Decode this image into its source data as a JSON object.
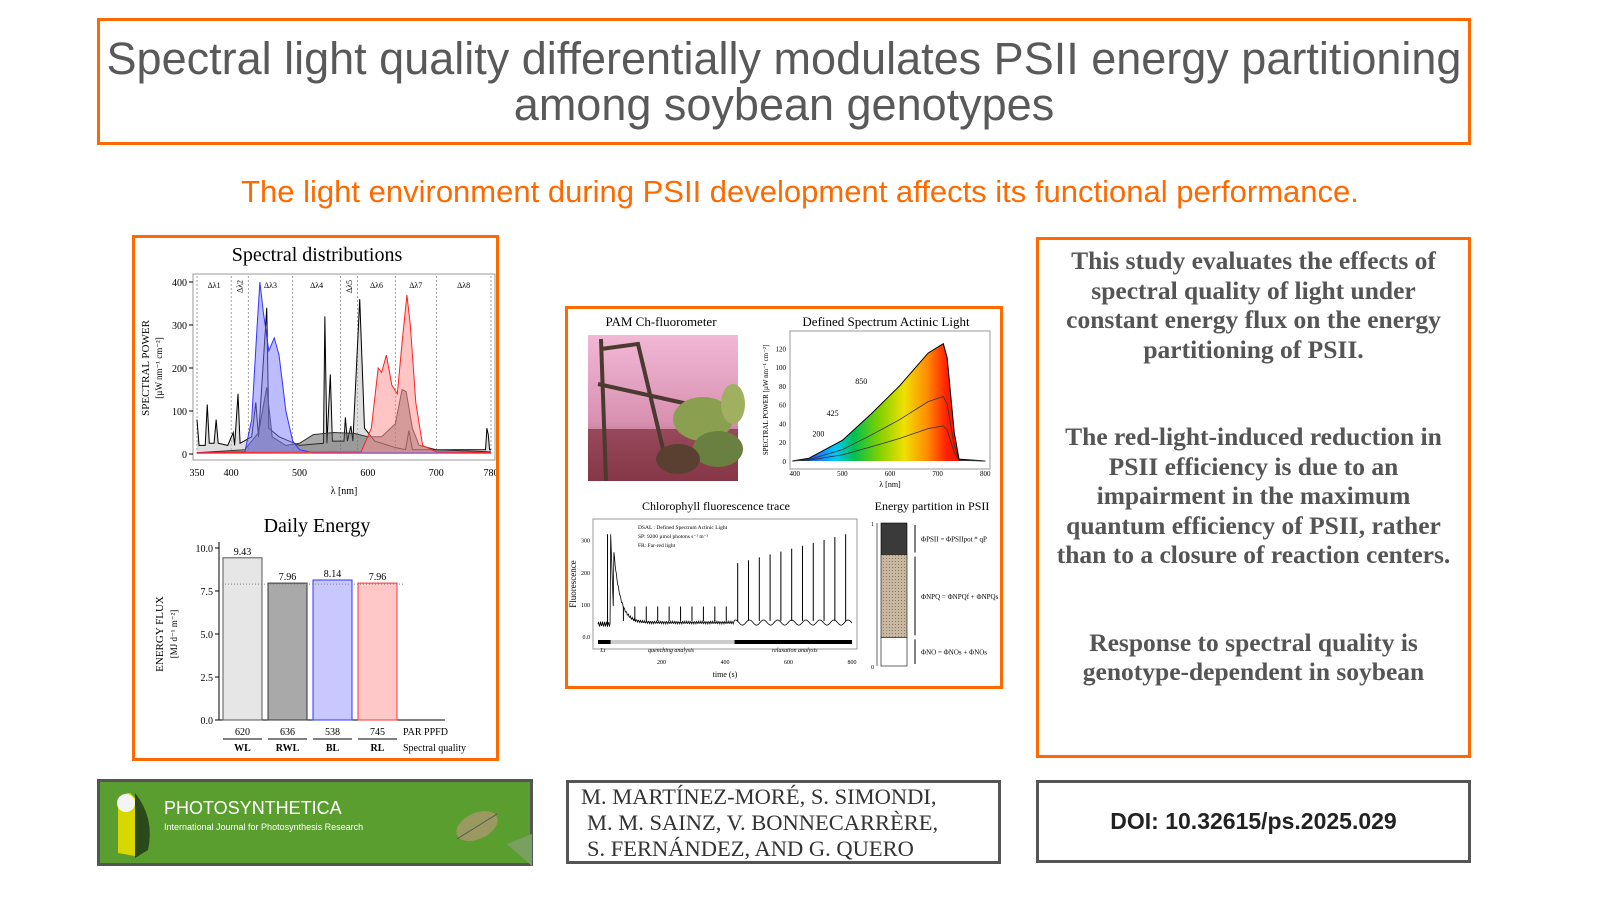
{
  "title": "Spectral light quality differentially modulates PSII energy partitioning among soybean genotypes",
  "subtitle": "The light environment during PSII development affects its functional performance.",
  "left_panel": {
    "spectral_title": "Spectral distributions",
    "energy_title": "Daily Energy"
  },
  "mid_panel": {
    "photo_title": "PAM Ch-fluorometer",
    "spectrum_title": "Defined Spectrum Actinic Light",
    "spectrum_ylabel": "SPECTRAL POWER [µW nm⁻¹ cm⁻²]",
    "spectrum_xlabel": "λ [nm]",
    "spectrum_yticks": [
      "0",
      "20",
      "40",
      "60",
      "80",
      "100",
      "120"
    ],
    "spectrum_xticks": [
      "400",
      "500",
      "600",
      "700",
      "800"
    ],
    "spectrum_curve_labels": [
      "850",
      "425",
      "200"
    ],
    "trace_title": "Chlorophyll fluorescence trace",
    "trace_ylabel": "Fluorescence",
    "trace_xlabel": "time (s)",
    "trace_yticks": [
      "0.0",
      "100",
      "200",
      "300"
    ],
    "trace_xticks": [
      "200",
      "400",
      "600",
      "800"
    ],
    "trace_legend": [
      "DSAL : Defined Spectrum Actinic Light",
      "SP: 9200 µmol photons s⁻¹ m⁻²",
      "FR: Far-red light"
    ],
    "trace_phases": [
      "Lt",
      "quenching analysis",
      "relaxation analysis"
    ],
    "partition_title": "Energy partition in PSII",
    "partition_labels": [
      "ΦPSII = ΦPSIIpot * qP",
      "ΦNPQ = ΦNPQf + ΦNPQs",
      "ΦNO = ΦNOs + ΦNOs"
    ],
    "partition_fractions": [
      0.22,
      0.58,
      0.2
    ],
    "partition_axis": [
      "1",
      "0"
    ]
  },
  "right_panel": {
    "paragraphs": [
      "This study evaluates the effects of spectral quality of light under constant energy flux on the energy partitioning of PSII.",
      "The red-light-induced reduction in PSII efficiency is due to an impairment in the maximum quantum efficiency of PSII, rather than to a closure of reaction centers.",
      "Response to spectral quality is genotype-dependent in soybean"
    ]
  },
  "journal": {
    "name": "PHOTOSYNTHETICA",
    "tagline": "International Journal for Photosynthesis Research"
  },
  "authors": [
    "M. MARTÍNEZ-MORÉ, S. SIMONDI,",
    "M. M. SAINZ, V. BONNECARRÈRE,",
    "S. FERNÁNDEZ, AND G. QUERO"
  ],
  "doi": "DOI: 10.32615/ps.2025.029",
  "chart_data": [
    {
      "type": "area",
      "title": "Spectral distributions",
      "xlabel": "λ [nm]",
      "ylabel": "SPECTRAL POWER",
      "ylabel_units": "[µW nm⁻¹ cm⁻²]",
      "xlim": [
        350,
        780
      ],
      "ylim": [
        0,
        400
      ],
      "xticks": [
        350,
        400,
        500,
        600,
        700,
        780
      ],
      "yticks": [
        0,
        100,
        200,
        300,
        400
      ],
      "band_edges": [
        350,
        400,
        425,
        490,
        560,
        585,
        640,
        700,
        780
      ],
      "band_labels": [
        "Δλ1",
        "Δλ2",
        "Δλ3",
        "Δλ4",
        "Δλ5",
        "Δλ6",
        "Δλ7",
        "Δλ8"
      ],
      "series": [
        {
          "name": "WL",
          "color": "#000000",
          "fill": "#bdbdbd",
          "points": [
            [
              350,
              80
            ],
            [
              353,
              20
            ],
            [
              362,
              20
            ],
            [
              365,
              115
            ],
            [
              368,
              25
            ],
            [
              375,
              25
            ],
            [
              378,
              80
            ],
            [
              381,
              25
            ],
            [
              395,
              20
            ],
            [
              403,
              50
            ],
            [
              405,
              20
            ],
            [
              410,
              140
            ],
            [
              413,
              25
            ],
            [
              430,
              40
            ],
            [
              436,
              120
            ],
            [
              440,
              40
            ],
            [
              452,
              340
            ],
            [
              455,
              60
            ],
            [
              470,
              40
            ],
            [
              500,
              20
            ],
            [
              535,
              25
            ],
            [
              537,
              320
            ],
            [
              540,
              25
            ],
            [
              545,
              185
            ],
            [
              548,
              30
            ],
            [
              565,
              30
            ],
            [
              567,
              85
            ],
            [
              570,
              30
            ],
            [
              575,
              65
            ],
            [
              578,
              30
            ],
            [
              588,
              360
            ],
            [
              595,
              60
            ],
            [
              610,
              30
            ],
            [
              640,
              15
            ],
            [
              655,
              10
            ],
            [
              660,
              55
            ],
            [
              665,
              10
            ],
            [
              700,
              10
            ],
            [
              772,
              10
            ],
            [
              774,
              60
            ],
            [
              776,
              45
            ],
            [
              778,
              10
            ],
            [
              780,
              10
            ]
          ]
        },
        {
          "name": "RWL",
          "color": "#333333",
          "fill": "#555555",
          "points": [
            [
              350,
              3
            ],
            [
              420,
              10
            ],
            [
              440,
              50
            ],
            [
              452,
              155
            ],
            [
              460,
              40
            ],
            [
              480,
              20
            ],
            [
              500,
              25
            ],
            [
              520,
              45
            ],
            [
              550,
              50
            ],
            [
              580,
              48
            ],
            [
              600,
              40
            ],
            [
              620,
              40
            ],
            [
              640,
              70
            ],
            [
              650,
              150
            ],
            [
              656,
              145
            ],
            [
              665,
              60
            ],
            [
              675,
              20
            ],
            [
              700,
              10
            ],
            [
              780,
              5
            ]
          ]
        },
        {
          "name": "BL",
          "color": "#3333ff",
          "fill": "#7a7aff",
          "points": [
            [
              350,
              3
            ],
            [
              420,
              5
            ],
            [
              430,
              80
            ],
            [
              438,
              300
            ],
            [
              442,
              400
            ],
            [
              447,
              330
            ],
            [
              455,
              240
            ],
            [
              463,
              270
            ],
            [
              470,
              230
            ],
            [
              480,
              100
            ],
            [
              490,
              30
            ],
            [
              500,
              10
            ],
            [
              520,
              3
            ],
            [
              780,
              3
            ]
          ]
        },
        {
          "name": "RL",
          "color": "#ff2222",
          "fill": "#ff8a8a",
          "points": [
            [
              350,
              3
            ],
            [
              590,
              5
            ],
            [
              605,
              60
            ],
            [
              615,
              200
            ],
            [
              620,
              190
            ],
            [
              627,
              230
            ],
            [
              635,
              160
            ],
            [
              643,
              140
            ],
            [
              650,
              260
            ],
            [
              657,
              370
            ],
            [
              662,
              300
            ],
            [
              670,
              120
            ],
            [
              680,
              20
            ],
            [
              700,
              5
            ],
            [
              780,
              3
            ]
          ]
        }
      ]
    },
    {
      "type": "bar",
      "title": "Daily Energy",
      "ylabel": "ENERGY FLUX",
      "ylabel_units": "[MJ d⁻¹ m⁻²]",
      "ylim": [
        0,
        10
      ],
      "yticks": [
        "0.0",
        "2.5",
        "5.0",
        "7.5",
        "10.0"
      ],
      "categories": [
        "WL",
        "RWL",
        "BL",
        "RL"
      ],
      "values": [
        9.43,
        7.96,
        8.14,
        7.96
      ],
      "value_labels": [
        "9.43",
        "7.96",
        "8.14",
        "7.96"
      ],
      "par_ppfd": [
        "620",
        "636",
        "538",
        "745"
      ],
      "par_ppfd_label": "PAR PPFD",
      "category_axis_label": "Spectral quality",
      "reference_line": 7.9,
      "fills": [
        "#e6e6e6",
        "#a9a9a9",
        "#c8c8ff",
        "#ffc8c8"
      ],
      "strokes": [
        "#555555",
        "#333333",
        "#3333ff",
        "#ff3333"
      ]
    }
  ]
}
